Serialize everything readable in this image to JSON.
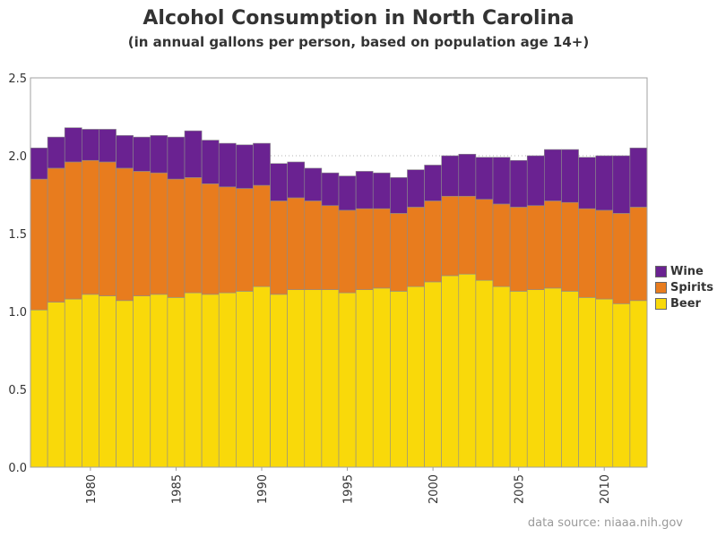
{
  "chart_data": {
    "type": "bar",
    "stacked": true,
    "title": "Alcohol Consumption in North Carolina",
    "subtitle": "(in annual gallons per person, based on population age 14+)",
    "source": "data source: niaaa.nih.gov",
    "xlabel": "",
    "ylabel": "",
    "ylim": [
      0,
      2.5
    ],
    "yticks": [
      "0.0",
      "0.5",
      "1.0",
      "1.5",
      "2.0",
      "2.5"
    ],
    "xticks": [
      "1980",
      "1985",
      "1990",
      "1995",
      "2000",
      "2005",
      "2010"
    ],
    "grid": "horizontal dotted",
    "legend_position": "right",
    "categories": [
      1977,
      1978,
      1979,
      1980,
      1981,
      1982,
      1983,
      1984,
      1985,
      1986,
      1987,
      1988,
      1989,
      1990,
      1991,
      1992,
      1993,
      1994,
      1995,
      1996,
      1997,
      1998,
      1999,
      2000,
      2001,
      2002,
      2003,
      2004,
      2005,
      2006,
      2007,
      2008,
      2009,
      2010,
      2011,
      2012
    ],
    "series": [
      {
        "name": "Beer",
        "color": "#f9d90a",
        "values": [
          1.01,
          1.06,
          1.08,
          1.11,
          1.1,
          1.07,
          1.1,
          1.11,
          1.09,
          1.12,
          1.11,
          1.12,
          1.13,
          1.16,
          1.11,
          1.14,
          1.14,
          1.14,
          1.12,
          1.14,
          1.15,
          1.13,
          1.16,
          1.19,
          1.23,
          1.24,
          1.2,
          1.16,
          1.13,
          1.14,
          1.15,
          1.13,
          1.09,
          1.08,
          1.05,
          1.07
        ]
      },
      {
        "name": "Spirits",
        "color": "#e87c1e",
        "values": [
          0.84,
          0.86,
          0.88,
          0.86,
          0.86,
          0.85,
          0.8,
          0.78,
          0.76,
          0.74,
          0.71,
          0.68,
          0.66,
          0.65,
          0.6,
          0.59,
          0.57,
          0.54,
          0.53,
          0.52,
          0.51,
          0.5,
          0.51,
          0.52,
          0.51,
          0.5,
          0.52,
          0.53,
          0.54,
          0.54,
          0.56,
          0.57,
          0.57,
          0.57,
          0.58,
          0.6
        ]
      },
      {
        "name": "Wine",
        "color": "#6a2291",
        "values": [
          0.2,
          0.2,
          0.22,
          0.2,
          0.21,
          0.21,
          0.22,
          0.24,
          0.27,
          0.3,
          0.28,
          0.28,
          0.28,
          0.27,
          0.24,
          0.23,
          0.21,
          0.21,
          0.22,
          0.24,
          0.23,
          0.23,
          0.24,
          0.23,
          0.26,
          0.27,
          0.27,
          0.3,
          0.3,
          0.32,
          0.33,
          0.34,
          0.33,
          0.35,
          0.37,
          0.38
        ]
      }
    ]
  }
}
